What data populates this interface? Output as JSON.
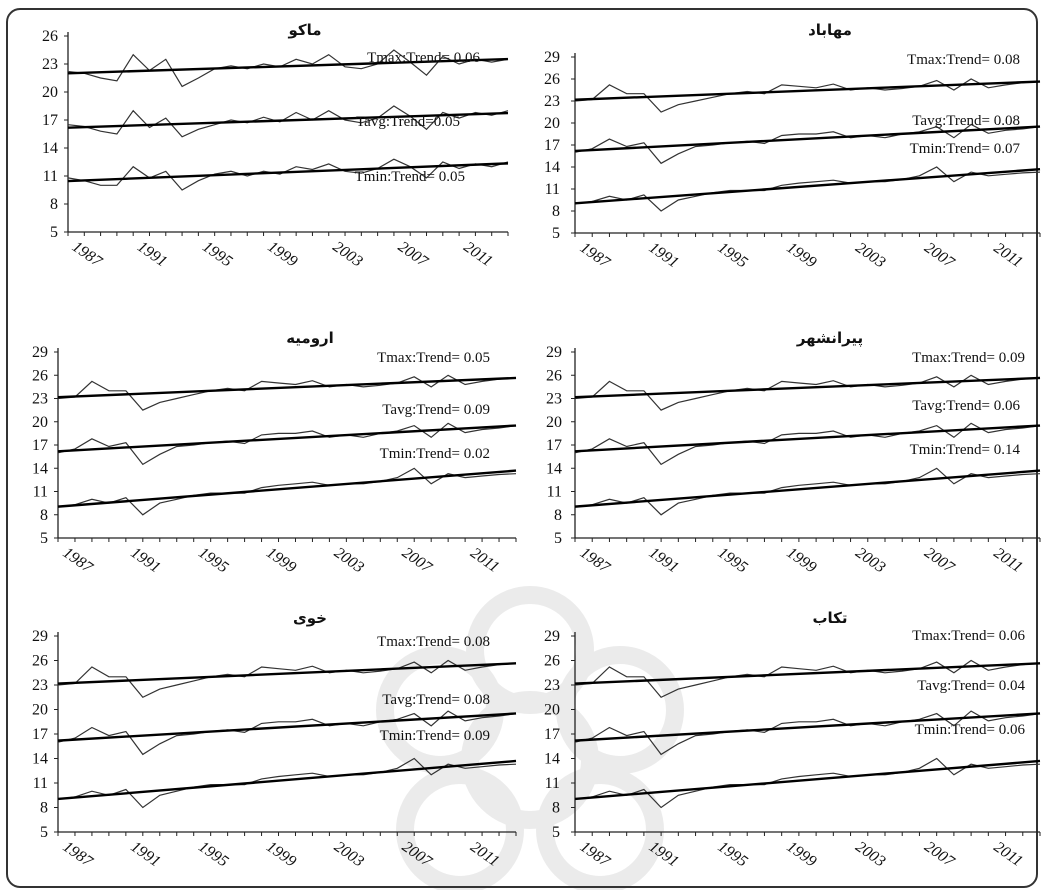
{
  "chart_data": [
    {
      "type": "line",
      "title": "ماکو",
      "ylim": [
        5,
        26
      ],
      "yticks": [
        5,
        8,
        11,
        14,
        17,
        20,
        23,
        26
      ],
      "xticks": [
        1987,
        1991,
        1995,
        1999,
        2003,
        2007,
        2011
      ],
      "x": [
        1986,
        1987,
        1988,
        1989,
        1990,
        1991,
        1992,
        1993,
        1994,
        1995,
        1996,
        1997,
        1998,
        1999,
        2000,
        2001,
        2002,
        2003,
        2004,
        2005,
        2006,
        2007,
        2008,
        2009,
        2010,
        2011,
        2012,
        2013
      ],
      "series": [
        {
          "values": [
            22.2,
            22.0,
            21.5,
            21.2,
            24.0,
            22.3,
            23.5,
            20.6,
            21.5,
            22.5,
            22.8,
            22.5,
            23.0,
            22.7,
            23.5,
            23.0,
            24.0,
            22.7,
            22.5,
            23.0,
            24.5,
            23.2,
            21.8,
            23.8,
            23.0,
            23.5,
            23.2,
            23.5
          ]
        },
        {
          "values": [
            16.5,
            16.3,
            15.8,
            15.5,
            18.0,
            16.2,
            17.2,
            15.2,
            16.0,
            16.5,
            17.0,
            16.7,
            17.3,
            16.8,
            17.8,
            17.0,
            18.0,
            17.0,
            16.7,
            17.2,
            18.5,
            17.4,
            16.0,
            17.8,
            17.2,
            17.8,
            17.5,
            18.0
          ]
        },
        {
          "values": [
            10.8,
            10.5,
            10.0,
            10.0,
            12.0,
            10.8,
            11.5,
            9.5,
            10.5,
            11.2,
            11.5,
            11.0,
            11.5,
            11.2,
            12.0,
            11.7,
            12.3,
            11.5,
            11.3,
            11.8,
            12.8,
            12.0,
            10.8,
            12.5,
            11.8,
            12.3,
            12.0,
            12.5
          ]
        }
      ],
      "annotations": [
        "Tmax:Trend= 0.06",
        "Tavg:Trend=0.05",
        "Tmin:Trend= 0.05"
      ]
    },
    {
      "type": "line",
      "title": "مهاباد",
      "ylim": [
        5,
        29
      ],
      "yticks": [
        5,
        8,
        11,
        14,
        17,
        20,
        23,
        26,
        29
      ],
      "xticks": [
        1987,
        1991,
        1995,
        1999,
        2003,
        2007,
        2011
      ],
      "x": [
        1986,
        1987,
        1988,
        1989,
        1990,
        1991,
        1992,
        1993,
        1994,
        1995,
        1996,
        1997,
        1998,
        1999,
        2000,
        2001,
        2002,
        2003,
        2004,
        2005,
        2006,
        2007,
        2008,
        2009,
        2010,
        2011,
        2012,
        2013
      ],
      "series": [
        {
          "values": [
            23.0,
            23.2,
            25.2,
            24.0,
            24.0,
            21.5,
            22.5,
            23.0,
            23.5,
            24.0,
            24.3,
            24.0,
            25.2,
            25.0,
            24.8,
            25.3,
            24.5,
            24.8,
            24.5,
            24.7,
            25.0,
            25.8,
            24.5,
            26.0,
            24.8,
            25.2,
            25.5,
            25.7
          ]
        },
        {
          "values": [
            16.0,
            16.5,
            17.8,
            16.8,
            17.3,
            14.5,
            15.8,
            16.8,
            17.0,
            17.3,
            17.5,
            17.2,
            18.3,
            18.5,
            18.5,
            18.8,
            18.0,
            18.3,
            18.0,
            18.5,
            18.8,
            19.5,
            18.0,
            19.8,
            18.6,
            19.0,
            19.2,
            19.5
          ]
        },
        {
          "values": [
            9.0,
            9.3,
            10.0,
            9.5,
            10.2,
            8.0,
            9.5,
            10.0,
            10.5,
            10.8,
            10.8,
            10.8,
            11.5,
            11.8,
            12.0,
            12.2,
            11.8,
            12.0,
            12.0,
            12.3,
            12.8,
            14.0,
            12.0,
            13.3,
            12.8,
            13.0,
            13.2,
            13.3
          ]
        }
      ],
      "annotations": [
        "Tmax:Trend= 0.08",
        "Tavg:Trend= 0.08",
        "Tmin:Trend= 0.07"
      ]
    },
    {
      "type": "line",
      "title": "ارومیه",
      "ylim": [
        5,
        29
      ],
      "yticks": [
        5,
        8,
        11,
        14,
        17,
        20,
        23,
        26,
        29
      ],
      "xticks": [
        1987,
        1991,
        1995,
        1999,
        2003,
        2007,
        2011
      ],
      "x": [
        1986,
        1987,
        1988,
        1989,
        1990,
        1991,
        1992,
        1993,
        1994,
        1995,
        1996,
        1997,
        1998,
        1999,
        2000,
        2001,
        2002,
        2003,
        2004,
        2005,
        2006,
        2007,
        2008,
        2009,
        2010,
        2011,
        2012,
        2013
      ],
      "series": [
        {
          "values": [
            23.0,
            23.2,
            25.2,
            24.0,
            24.0,
            21.5,
            22.5,
            23.0,
            23.5,
            24.0,
            24.3,
            24.0,
            25.2,
            25.0,
            24.8,
            25.3,
            24.5,
            24.8,
            24.5,
            24.7,
            25.0,
            25.8,
            24.5,
            26.0,
            24.8,
            25.2,
            25.5,
            25.7
          ]
        },
        {
          "values": [
            16.0,
            16.5,
            17.8,
            16.8,
            17.3,
            14.5,
            15.8,
            16.8,
            17.0,
            17.3,
            17.5,
            17.2,
            18.3,
            18.5,
            18.5,
            18.8,
            18.0,
            18.3,
            18.0,
            18.5,
            18.8,
            19.5,
            18.0,
            19.8,
            18.6,
            19.0,
            19.2,
            19.5
          ]
        },
        {
          "values": [
            9.0,
            9.3,
            10.0,
            9.5,
            10.2,
            8.0,
            9.5,
            10.0,
            10.5,
            10.8,
            10.8,
            10.8,
            11.5,
            11.8,
            12.0,
            12.2,
            11.8,
            12.0,
            12.0,
            12.3,
            12.8,
            14.0,
            12.0,
            13.3,
            12.8,
            13.0,
            13.2,
            13.3
          ]
        }
      ],
      "annotations": [
        "Tmax:Trend= 0.05",
        "Tavg:Trend= 0.09",
        "Tmin:Trend= 0.02"
      ]
    },
    {
      "type": "line",
      "title": "پیرانشهر",
      "ylim": [
        5,
        29
      ],
      "yticks": [
        5,
        8,
        11,
        14,
        17,
        20,
        23,
        26,
        29
      ],
      "xticks": [
        1987,
        1991,
        1995,
        1999,
        2003,
        2007,
        2011
      ],
      "x": [
        1986,
        1987,
        1988,
        1989,
        1990,
        1991,
        1992,
        1993,
        1994,
        1995,
        1996,
        1997,
        1998,
        1999,
        2000,
        2001,
        2002,
        2003,
        2004,
        2005,
        2006,
        2007,
        2008,
        2009,
        2010,
        2011,
        2012,
        2013
      ],
      "series": [
        {
          "values": [
            23.0,
            23.2,
            25.2,
            24.0,
            24.0,
            21.5,
            22.5,
            23.0,
            23.5,
            24.0,
            24.3,
            24.0,
            25.2,
            25.0,
            24.8,
            25.3,
            24.5,
            24.8,
            24.5,
            24.7,
            25.0,
            25.8,
            24.5,
            26.0,
            24.8,
            25.2,
            25.5,
            25.7
          ]
        },
        {
          "values": [
            16.0,
            16.5,
            17.8,
            16.8,
            17.3,
            14.5,
            15.8,
            16.8,
            17.0,
            17.3,
            17.5,
            17.2,
            18.3,
            18.5,
            18.5,
            18.8,
            18.0,
            18.3,
            18.0,
            18.5,
            18.8,
            19.5,
            18.0,
            19.8,
            18.6,
            19.0,
            19.2,
            19.5
          ]
        },
        {
          "values": [
            9.0,
            9.3,
            10.0,
            9.5,
            10.2,
            8.0,
            9.5,
            10.0,
            10.5,
            10.8,
            10.8,
            10.8,
            11.5,
            11.8,
            12.0,
            12.2,
            11.8,
            12.0,
            12.0,
            12.3,
            12.8,
            14.0,
            12.0,
            13.3,
            12.8,
            13.0,
            13.2,
            13.3
          ]
        }
      ],
      "annotations": [
        "Tmax:Trend= 0.09",
        "Tavg:Trend= 0.06",
        "Tmin:Trend= 0.14"
      ]
    },
    {
      "type": "line",
      "title": "خوی",
      "ylim": [
        5,
        29
      ],
      "yticks": [
        5,
        8,
        11,
        14,
        17,
        20,
        23,
        26,
        29
      ],
      "xticks": [
        1987,
        1991,
        1995,
        1999,
        2003,
        2007,
        2011
      ],
      "x": [
        1986,
        1987,
        1988,
        1989,
        1990,
        1991,
        1992,
        1993,
        1994,
        1995,
        1996,
        1997,
        1998,
        1999,
        2000,
        2001,
        2002,
        2003,
        2004,
        2005,
        2006,
        2007,
        2008,
        2009,
        2010,
        2011,
        2012,
        2013
      ],
      "series": [
        {
          "values": [
            23.0,
            23.2,
            25.2,
            24.0,
            24.0,
            21.5,
            22.5,
            23.0,
            23.5,
            24.0,
            24.3,
            24.0,
            25.2,
            25.0,
            24.8,
            25.3,
            24.5,
            24.8,
            24.5,
            24.7,
            25.0,
            25.8,
            24.5,
            26.0,
            24.8,
            25.2,
            25.5,
            25.7
          ]
        },
        {
          "values": [
            16.0,
            16.5,
            17.8,
            16.8,
            17.3,
            14.5,
            15.8,
            16.8,
            17.0,
            17.3,
            17.5,
            17.2,
            18.3,
            18.5,
            18.5,
            18.8,
            18.0,
            18.3,
            18.0,
            18.5,
            18.8,
            19.5,
            18.0,
            19.8,
            18.6,
            19.0,
            19.2,
            19.5
          ]
        },
        {
          "values": [
            9.0,
            9.3,
            10.0,
            9.5,
            10.2,
            8.0,
            9.5,
            10.0,
            10.5,
            10.8,
            10.8,
            10.8,
            11.5,
            11.8,
            12.0,
            12.2,
            11.8,
            12.0,
            12.0,
            12.3,
            12.8,
            14.0,
            12.0,
            13.3,
            12.8,
            13.0,
            13.2,
            13.3
          ]
        }
      ],
      "annotations": [
        "Tmax:Trend= 0.08",
        "Tavg:Trend= 0.08",
        "Tmin:Trend= 0.09"
      ]
    },
    {
      "type": "line",
      "title": "تکاب",
      "ylim": [
        5,
        29
      ],
      "yticks": [
        5,
        8,
        11,
        14,
        17,
        20,
        23,
        26,
        29
      ],
      "xticks": [
        1987,
        1991,
        1995,
        1999,
        2003,
        2007,
        2011
      ],
      "x": [
        1986,
        1987,
        1988,
        1989,
        1990,
        1991,
        1992,
        1993,
        1994,
        1995,
        1996,
        1997,
        1998,
        1999,
        2000,
        2001,
        2002,
        2003,
        2004,
        2005,
        2006,
        2007,
        2008,
        2009,
        2010,
        2011,
        2012,
        2013
      ],
      "series": [
        {
          "values": [
            23.0,
            23.2,
            25.2,
            24.0,
            24.0,
            21.5,
            22.5,
            23.0,
            23.5,
            24.0,
            24.3,
            24.0,
            25.2,
            25.0,
            24.8,
            25.3,
            24.5,
            24.8,
            24.5,
            24.7,
            25.0,
            25.8,
            24.5,
            26.0,
            24.8,
            25.2,
            25.5,
            25.7
          ]
        },
        {
          "values": [
            16.0,
            16.5,
            17.8,
            16.8,
            17.3,
            14.5,
            15.8,
            16.8,
            17.0,
            17.3,
            17.5,
            17.2,
            18.3,
            18.5,
            18.5,
            18.8,
            18.0,
            18.3,
            18.0,
            18.5,
            18.8,
            19.5,
            18.0,
            19.8,
            18.6,
            19.0,
            19.2,
            19.5
          ]
        },
        {
          "values": [
            9.0,
            9.3,
            10.0,
            9.5,
            10.2,
            8.0,
            9.5,
            10.0,
            10.5,
            10.8,
            10.8,
            10.8,
            11.5,
            11.8,
            12.0,
            12.2,
            11.8,
            12.0,
            12.0,
            12.3,
            12.8,
            14.0,
            12.0,
            13.3,
            12.8,
            13.0,
            13.2,
            13.3
          ]
        }
      ],
      "annotations": [
        "Tmax:Trend= 0.06",
        "Tavg:Trend= 0.04",
        "Tmin:Trend= 0.06"
      ]
    }
  ]
}
